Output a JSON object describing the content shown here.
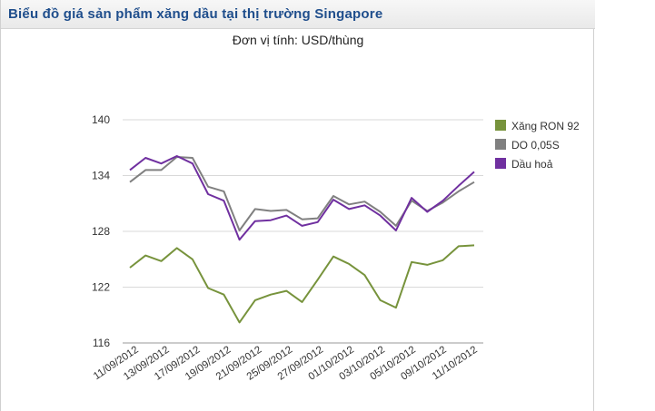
{
  "header": {
    "title": "Biểu đồ giá sản phẩm xăng dầu tại thị trường Singapore"
  },
  "chart_data": {
    "type": "line",
    "subtitle": "Đơn vị tính: USD/thùng",
    "ylim": [
      116,
      140
    ],
    "yticks": [
      116,
      122,
      128,
      134,
      140
    ],
    "grid": true,
    "legend_position": "right",
    "x_tick_labels": [
      "11/09/2012",
      "13/09/2012",
      "17/09/2012",
      "19/09/2012",
      "21/09/2012",
      "25/09/2012",
      "27/09/2012",
      "01/10/2012",
      "03/10/2012",
      "05/10/2012",
      "09/10/2012",
      "11/10/2012"
    ],
    "series": [
      {
        "name": "Xăng RON 92",
        "color": "#77933c",
        "values": [
          124.1,
          125.4,
          124.8,
          126.2,
          125.0,
          121.9,
          121.2,
          118.2,
          120.6,
          121.2,
          121.6,
          120.4,
          122.8,
          125.3,
          124.5,
          123.3,
          120.6,
          119.8,
          124.7,
          124.4,
          124.9,
          126.4,
          126.5
        ]
      },
      {
        "name": "DO 0,05S",
        "color": "#808080",
        "values": [
          133.3,
          134.6,
          134.6,
          136.0,
          135.9,
          132.8,
          132.3,
          128.1,
          130.4,
          130.2,
          130.3,
          129.3,
          129.4,
          131.8,
          130.9,
          131.2,
          130.1,
          128.6,
          131.3,
          130.2,
          131.1,
          132.3,
          133.3
        ]
      },
      {
        "name": "Dầu hoả",
        "color": "#7030a0",
        "values": [
          134.6,
          135.9,
          135.3,
          136.1,
          135.3,
          132.0,
          131.3,
          127.1,
          129.1,
          129.2,
          129.7,
          128.6,
          129.0,
          131.4,
          130.4,
          130.8,
          129.7,
          128.1,
          131.6,
          130.1,
          131.3,
          132.9,
          134.4
        ]
      }
    ]
  }
}
